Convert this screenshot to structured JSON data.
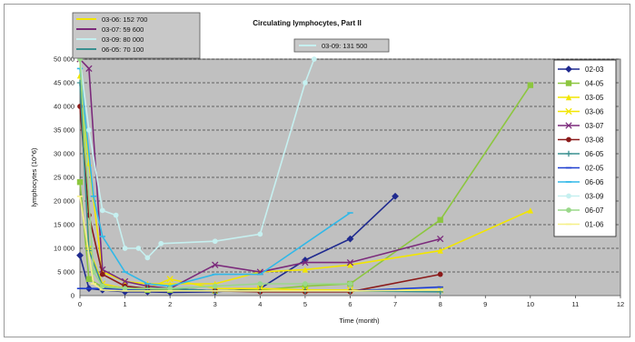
{
  "chart_data": {
    "type": "line",
    "title": "Circulating lymphocytes, Part II",
    "xlabel": "Time (month)",
    "ylabel": "lymphocytes (10^6)",
    "xlim": [
      0,
      12
    ],
    "ylim": [
      0,
      50000
    ],
    "x_ticks": [
      "0",
      "1",
      "2",
      "3",
      "4",
      "5",
      "6",
      "7",
      "8",
      "9",
      "10",
      "11",
      "12"
    ],
    "y_ticks": [
      "0",
      "5 000",
      "10 000",
      "15 000",
      "20 000",
      "25 000",
      "30 000",
      "35 000",
      "40 000",
      "45 000",
      "50 000"
    ],
    "grid": "horizontal dashed",
    "background": "#c0c0c0",
    "legend_position": "right",
    "series": [
      {
        "name": "02-03",
        "color": "#1f2a8f",
        "marker": "diamond",
        "points": [
          [
            0,
            8500
          ],
          [
            0.2,
            1500
          ],
          [
            0.5,
            1200
          ],
          [
            1,
            800
          ],
          [
            1.5,
            800
          ],
          [
            2,
            700
          ],
          [
            3,
            800
          ],
          [
            4,
            1500
          ],
          [
            5,
            7500
          ],
          [
            6,
            12000
          ],
          [
            7,
            21000
          ]
        ]
      },
      {
        "name": "04-05",
        "color": "#8cc63f",
        "marker": "square",
        "points": [
          [
            0,
            24000
          ],
          [
            0.2,
            3500
          ],
          [
            0.5,
            1800
          ],
          [
            1,
            1500
          ],
          [
            1.5,
            1200
          ],
          [
            2,
            1200
          ],
          [
            3,
            1000
          ],
          [
            4,
            1200
          ],
          [
            5,
            2000
          ],
          [
            6,
            2500
          ],
          [
            8,
            16000
          ],
          [
            10,
            44500
          ]
        ]
      },
      {
        "name": "03-05",
        "color": "#f2e600",
        "marker": "triangle",
        "points": [
          [
            0,
            46500
          ],
          [
            0.2,
            28000
          ],
          [
            0.5,
            5000
          ],
          [
            1,
            3000
          ],
          [
            1.5,
            2500
          ],
          [
            2,
            2500
          ],
          [
            3,
            2500
          ],
          [
            4,
            5000
          ],
          [
            5,
            5500
          ],
          [
            6,
            6500
          ],
          [
            8,
            9500
          ],
          [
            10,
            18000
          ]
        ]
      },
      {
        "name": "03-06",
        "color": "#f2e600",
        "marker": "x",
        "points": [
          [
            0,
            50000
          ],
          [
            0.2,
            10000
          ],
          [
            0.5,
            2500
          ],
          [
            1,
            1500
          ],
          [
            1.5,
            1500
          ],
          [
            2,
            3500
          ],
          [
            3,
            1500
          ],
          [
            4,
            1500
          ],
          [
            5,
            1200
          ],
          [
            6,
            1200
          ],
          [
            8,
            1200
          ]
        ]
      },
      {
        "name": "03-07",
        "color": "#7b2a7b",
        "marker": "x",
        "points": [
          [
            0,
            50000
          ],
          [
            0.2,
            48000
          ],
          [
            0.5,
            5500
          ],
          [
            1,
            3000
          ],
          [
            1.5,
            2000
          ],
          [
            2,
            1500
          ],
          [
            3,
            6500
          ],
          [
            4,
            5000
          ],
          [
            5,
            7000
          ],
          [
            6,
            7000
          ],
          [
            8,
            12000
          ]
        ]
      },
      {
        "name": "03-08",
        "color": "#8b1a1a",
        "marker": "circle",
        "points": [
          [
            0,
            40000
          ],
          [
            0.2,
            17000
          ],
          [
            0.5,
            4500
          ],
          [
            1,
            2000
          ],
          [
            1.5,
            1500
          ],
          [
            2,
            1500
          ],
          [
            3,
            1000
          ],
          [
            4,
            800
          ],
          [
            5,
            800
          ],
          [
            6,
            800
          ],
          [
            8,
            4500
          ]
        ]
      },
      {
        "name": "06-05",
        "color": "#3a9090",
        "marker": "plus",
        "points": [
          [
            0,
            45000
          ],
          [
            0.2,
            9500
          ],
          [
            0.5,
            2000
          ],
          [
            1,
            1500
          ],
          [
            1.5,
            1500
          ],
          [
            2,
            1500
          ],
          [
            3,
            1000
          ],
          [
            4,
            1000
          ],
          [
            5,
            1000
          ],
          [
            6,
            1000
          ],
          [
            8,
            800
          ]
        ]
      },
      {
        "name": "02-05",
        "color": "#1f3fd0",
        "marker": "dash",
        "points": [
          [
            0,
            1500
          ],
          [
            0.5,
            1500
          ],
          [
            1,
            1200
          ],
          [
            2,
            1000
          ],
          [
            4,
            1000
          ],
          [
            6,
            1000
          ],
          [
            8,
            1800
          ]
        ]
      },
      {
        "name": "06-06",
        "color": "#30b8e8",
        "marker": "dash",
        "points": [
          [
            0,
            48000
          ],
          [
            0.3,
            21000
          ],
          [
            0.5,
            12500
          ],
          [
            1,
            5000
          ],
          [
            1.5,
            2500
          ],
          [
            2,
            2000
          ],
          [
            3,
            4500
          ],
          [
            4,
            4500
          ],
          [
            6,
            17500
          ]
        ]
      },
      {
        "name": "03-09",
        "color": "#c6f0f0",
        "marker": "circle",
        "points": [
          [
            0,
            50000
          ],
          [
            0.2,
            35000
          ],
          [
            0.5,
            18000
          ],
          [
            0.8,
            17000
          ],
          [
            1,
            10000
          ],
          [
            1.3,
            10000
          ],
          [
            1.5,
            8000
          ],
          [
            1.8,
            11000
          ],
          [
            3,
            11500
          ],
          [
            4,
            13000
          ],
          [
            5,
            45000
          ],
          [
            5.2,
            50000
          ]
        ]
      },
      {
        "name": "06-07",
        "color": "#9ad88a",
        "marker": "circle",
        "points": [
          [
            0,
            50000
          ],
          [
            0.3,
            5000
          ],
          [
            0.5,
            2000
          ],
          [
            1,
            1500
          ],
          [
            2,
            1500
          ],
          [
            3,
            2000
          ],
          [
            4,
            2500
          ],
          [
            5,
            2500
          ],
          [
            6,
            2500
          ]
        ]
      },
      {
        "name": "01-06",
        "color": "#f6f088",
        "marker": "dash",
        "points": [
          [
            0,
            21000
          ],
          [
            0.3,
            2500
          ],
          [
            0.5,
            1200
          ],
          [
            1,
            1000
          ],
          [
            2,
            1000
          ],
          [
            4,
            1000
          ],
          [
            6,
            1000
          ],
          [
            8,
            1200
          ]
        ]
      }
    ],
    "offscale_legend": [
      {
        "label": "03-06: 152 700",
        "color": "#f2e600"
      },
      {
        "label": "03-07: 59 600",
        "color": "#7b2a7b"
      },
      {
        "label": "03-09: 80 000",
        "color": "#c6f0f0"
      },
      {
        "label": "06-05: 70 100",
        "color": "#3a9090"
      }
    ],
    "offscale_note": {
      "label": "03-09: 131 500",
      "color": "#c6f0f0"
    }
  }
}
